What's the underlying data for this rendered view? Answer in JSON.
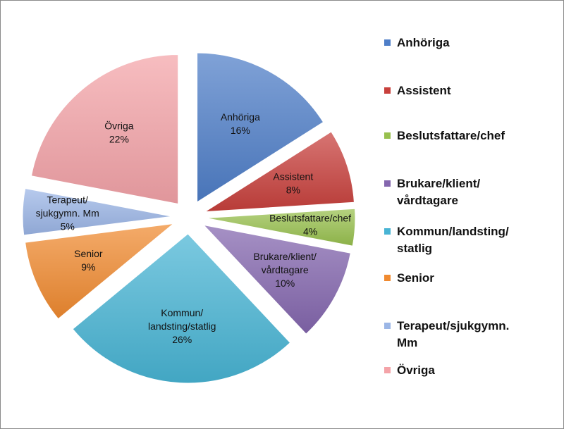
{
  "chart_data": {
    "type": "pie",
    "exploded": true,
    "start_angle_deg": 0,
    "direction": "clockwise",
    "slices": [
      {
        "name": "Anhöriga",
        "value": 16,
        "label_lines": [
          "Anhöriga",
          "16%"
        ],
        "legend_lines": [
          "Anhöriga"
        ],
        "color": "#4E7EC8"
      },
      {
        "name": "Assistent",
        "value": 8,
        "label_lines": [
          "Assistent",
          "8%"
        ],
        "legend_lines": [
          "Assistent"
        ],
        "color": "#C8403C"
      },
      {
        "name": "Beslutsfattare/chef",
        "value": 4,
        "label_lines": [
          "Beslutsfattare/chef",
          "4%"
        ],
        "legend_lines": [
          "Beslutsfattare/chef"
        ],
        "color": "#98C04E"
      },
      {
        "name": "Brukare/klient/vårdtagare",
        "value": 10,
        "label_lines": [
          "Brukare/klient/",
          "vårdtagare",
          "10%"
        ],
        "legend_lines": [
          "Brukare/klient/",
          "vårdtagare"
        ],
        "color": "#8466AE"
      },
      {
        "name": "Kommun/landsting/statlig",
        "value": 26,
        "label_lines": [
          "Kommun/",
          "landsting/statlig",
          "26%"
        ],
        "legend_lines": [
          "Kommun/landsting/",
          "statlig"
        ],
        "color": "#48B4D4"
      },
      {
        "name": "Senior",
        "value": 9,
        "label_lines": [
          "Senior",
          "9%"
        ],
        "legend_lines": [
          "Senior"
        ],
        "color": "#F08A30"
      },
      {
        "name": "Terapeut/sjukgymn. Mm",
        "value": 5,
        "label_lines": [
          "Terapeut/",
          "sjukgymn. Mm",
          "5%"
        ],
        "legend_lines": [
          "Terapeut/sjukgymn.",
          "Mm"
        ],
        "color": "#9BB6E6"
      },
      {
        "name": "Övriga",
        "value": 22,
        "label_lines": [
          "Övriga",
          "22%"
        ],
        "legend_lines": [
          "Övriga"
        ],
        "color": "#F4A3A8"
      }
    ],
    "legend_position": "right"
  }
}
